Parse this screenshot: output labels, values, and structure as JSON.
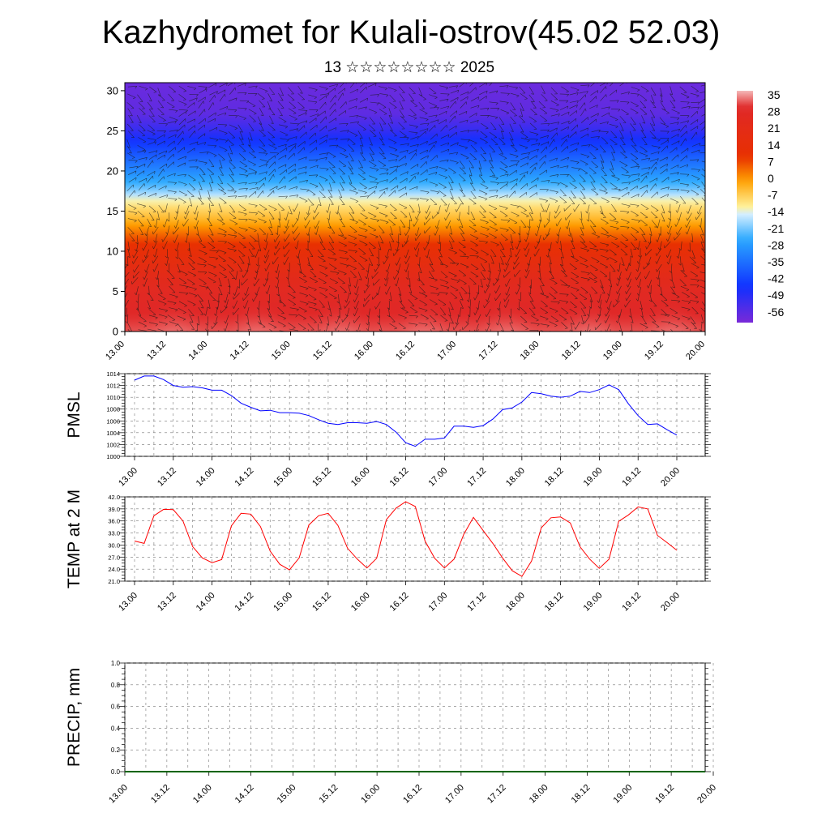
{
  "title": "Kazhydromet for Kulali-ostrov(45.02 52.03)",
  "subtitle": "13 ☆☆☆☆☆☆☆☆ 2025",
  "colorbar": {
    "labels": [
      "35",
      "28",
      "21",
      "14",
      "7",
      "0",
      "-7",
      "-14",
      "-21",
      "-28",
      "-35",
      "-42",
      "-49",
      "-56"
    ],
    "stops": [
      {
        "value": 38,
        "color": "#f4b8b8"
      },
      {
        "value": 31,
        "color": "#e02828"
      },
      {
        "value": 10,
        "color": "#e83000"
      },
      {
        "value": 0,
        "color": "#ffa000"
      },
      {
        "value": -11,
        "color": "#fff19a"
      },
      {
        "value": -14,
        "color": "#d8f0ff"
      },
      {
        "value": -25,
        "color": "#2aa8ff"
      },
      {
        "value": -45,
        "color": "#1030ff"
      },
      {
        "value": -60,
        "color": "#7a2ad8"
      }
    ]
  },
  "chart_data": [
    {
      "type": "heatmap",
      "name": "cross-section",
      "x_ticks": [
        "13.00",
        "13.12",
        "14.00",
        "14.12",
        "15.00",
        "15.12",
        "16.00",
        "16.12",
        "17.00",
        "17.12",
        "18.00",
        "18.12",
        "19.00",
        "19.12",
        "20.00"
      ],
      "yticks": [
        0,
        5,
        10,
        15,
        20,
        25,
        30
      ],
      "ylim": [
        0,
        31
      ],
      "level_values": [
        {
          "level": 0,
          "value": 33
        },
        {
          "level": 5,
          "value": 28
        },
        {
          "level": 10,
          "value": 14
        },
        {
          "level": 14,
          "value": -3
        },
        {
          "level": 16,
          "value": -10
        },
        {
          "level": 18,
          "value": -22
        },
        {
          "level": 20,
          "value": -30
        },
        {
          "level": 22,
          "value": -38
        },
        {
          "level": 25,
          "value": -50
        },
        {
          "level": 27,
          "value": -56
        },
        {
          "level": 31,
          "value": -58
        }
      ],
      "grid": false
    },
    {
      "type": "line",
      "ylabel": "PMSL",
      "color": "#0000ff",
      "x_ticks": [
        "13.00",
        "13.12",
        "14.00",
        "14.12",
        "15.00",
        "15.12",
        "16.00",
        "16.12",
        "17.00",
        "17.12",
        "18.00",
        "18.12",
        "19.00",
        "19.12",
        "20.00"
      ],
      "yticks": [
        "1000",
        "1002",
        "1004",
        "1006",
        "1008",
        "1010",
        "1012",
        "1014"
      ],
      "ylim": [
        1000,
        1014
      ],
      "values": [
        1012.9,
        1013.6,
        1013.6,
        1013.0,
        1012.0,
        1011.7,
        1011.8,
        1011.6,
        1011.2,
        1011.2,
        1010.3,
        1009.0,
        1008.3,
        1007.7,
        1007.8,
        1007.4,
        1007.4,
        1007.3,
        1006.9,
        1006.2,
        1005.6,
        1005.4,
        1005.7,
        1005.7,
        1005.6,
        1005.9,
        1005.4,
        1004.1,
        1002.3,
        1001.7,
        1002.9,
        1002.9,
        1003.1,
        1005.1,
        1005.1,
        1004.9,
        1005.2,
        1006.3,
        1007.9,
        1008.2,
        1009.2,
        1010.8,
        1010.6,
        1010.2,
        1010.0,
        1010.2,
        1011.0,
        1010.8,
        1011.3,
        1012.1,
        1011.3,
        1008.9,
        1006.9,
        1005.4,
        1005.5,
        1004.5,
        1003.6
      ],
      "grid": true
    },
    {
      "type": "line",
      "ylabel": "TEMP at 2 M",
      "color": "#ff0000",
      "x_ticks": [
        "13.00",
        "13.12",
        "14.00",
        "14.12",
        "15.00",
        "15.12",
        "16.00",
        "16.12",
        "17.00",
        "17.12",
        "18.00",
        "18.12",
        "19.00",
        "19.12",
        "20.00"
      ],
      "yticks": [
        "21.0",
        "24.0",
        "27.0",
        "30.0",
        "33.0",
        "36.0",
        "39.0",
        "42.0"
      ],
      "ylim": [
        21,
        42
      ],
      "values": [
        31.0,
        30.4,
        37.3,
        38.9,
        38.8,
        36.0,
        29.6,
        26.8,
        25.6,
        26.4,
        34.8,
        37.9,
        37.7,
        34.6,
        28.5,
        25.2,
        23.8,
        26.8,
        35.0,
        37.3,
        37.9,
        34.9,
        29.2,
        26.5,
        24.3,
        26.7,
        36.3,
        39.2,
        40.8,
        39.6,
        31.0,
        26.7,
        24.3,
        26.5,
        32.7,
        36.9,
        33.6,
        30.4,
        26.8,
        23.6,
        22.2,
        26.0,
        34.3,
        36.8,
        37.0,
        35.5,
        29.6,
        26.5,
        24.2,
        26.5,
        35.9,
        37.5,
        39.5,
        39.0,
        32.4,
        30.6,
        28.7
      ],
      "grid": true
    },
    {
      "type": "line",
      "ylabel": "PRECIP, mm",
      "color": "#006400",
      "x_ticks": [
        "13.00",
        "13.12",
        "14.00",
        "14.12",
        "15.00",
        "15.12",
        "16.00",
        "16.12",
        "17.00",
        "17.12",
        "18.00",
        "18.12",
        "19.00",
        "19.12",
        "20.00"
      ],
      "yticks": [
        "0.0",
        "0.2",
        "0.4",
        "0.6",
        "0.8",
        "1.0"
      ],
      "ylim": [
        0,
        1
      ],
      "values": [
        0,
        0,
        0,
        0,
        0,
        0,
        0,
        0,
        0,
        0,
        0,
        0,
        0,
        0,
        0,
        0,
        0,
        0,
        0,
        0,
        0,
        0,
        0,
        0,
        0,
        0,
        0,
        0,
        0,
        0,
        0,
        0,
        0,
        0,
        0,
        0,
        0,
        0,
        0,
        0,
        0,
        0,
        0,
        0,
        0,
        0,
        0,
        0,
        0,
        0,
        0,
        0,
        0,
        0,
        0,
        0,
        0
      ],
      "grid": true
    }
  ]
}
